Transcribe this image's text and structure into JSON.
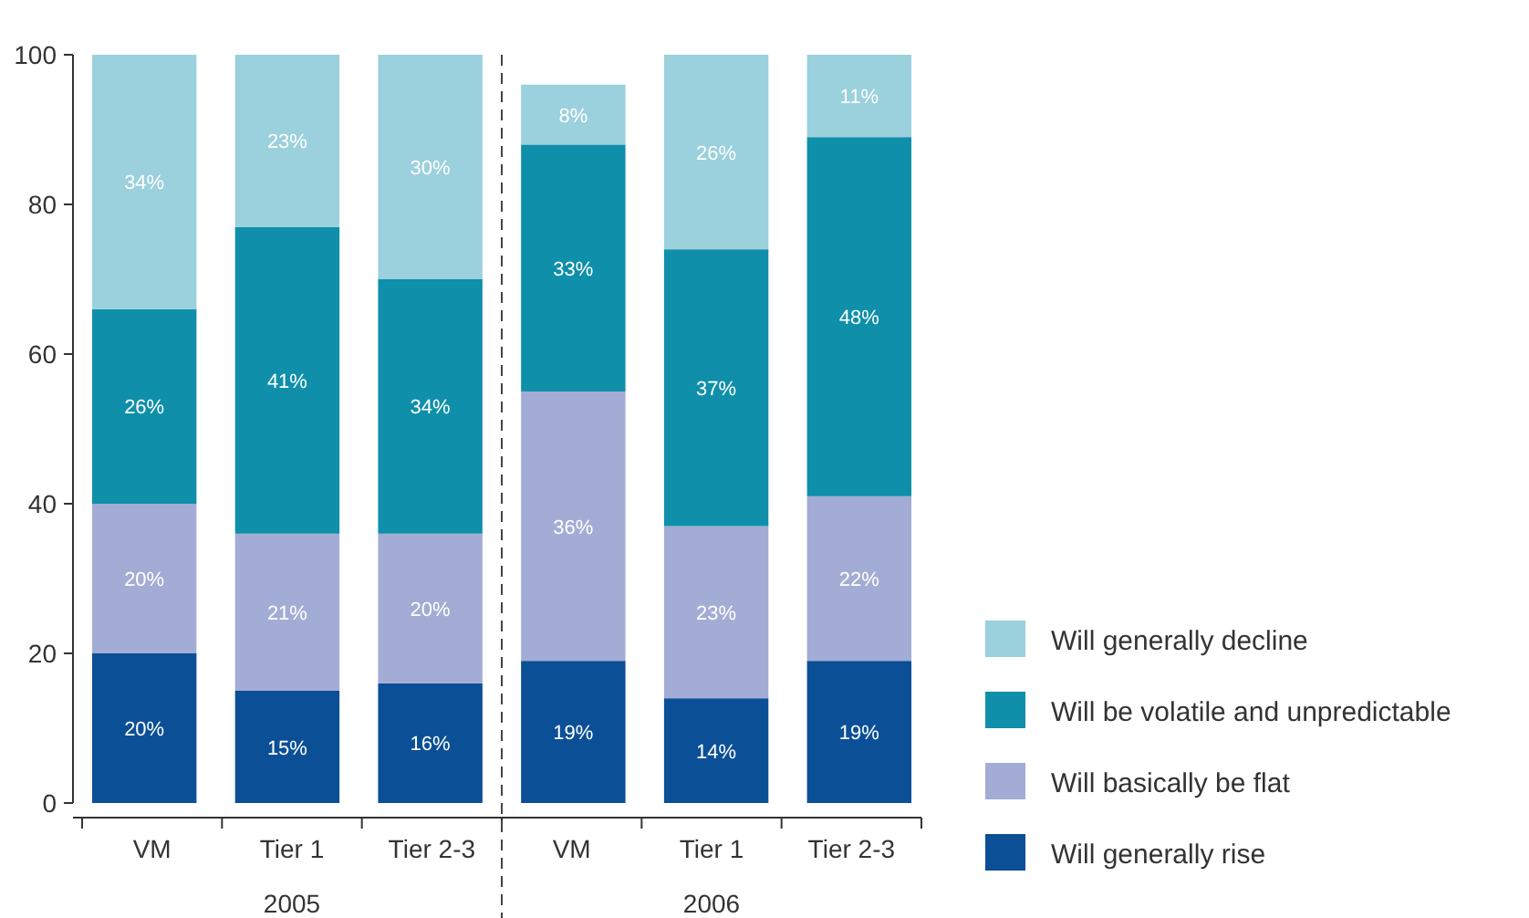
{
  "chart_data": {
    "type": "bar",
    "stacked": true,
    "categories": [
      "VM",
      "Tier 1",
      "Tier 2-3",
      "VM",
      "Tier 1",
      "Tier 2-3"
    ],
    "series": [
      {
        "name": "Will generally rise",
        "color": "#0b4f97",
        "values": [
          20,
          15,
          16,
          19,
          14,
          19
        ],
        "value_labels": [
          "20%",
          "15%",
          "16%",
          "19%",
          "14%",
          "19%"
        ]
      },
      {
        "name": "Will basically be flat",
        "color": "#a3acd4",
        "values": [
          20,
          21,
          20,
          36,
          23,
          22
        ],
        "value_labels": [
          "20%",
          "21%",
          "20%",
          "36%",
          "23%",
          "22%"
        ]
      },
      {
        "name": "Will be volatile and unpredictable",
        "color": "#0f8fa9",
        "values": [
          26,
          41,
          34,
          33,
          37,
          48
        ],
        "value_labels": [
          "26%",
          "41%",
          "34%",
          "33%",
          "37%",
          "48%"
        ]
      },
      {
        "name": "Will generally decline",
        "color": "#9bd0dd",
        "values": [
          34,
          23,
          30,
          8,
          26,
          11
        ],
        "value_labels": [
          "34%",
          "23%",
          "30%",
          "8%",
          "26%",
          "11%"
        ]
      }
    ],
    "ylim": [
      0,
      100
    ],
    "yticks": [
      0,
      20,
      40,
      60,
      80,
      100
    ],
    "grid": false,
    "legend": "bottom right",
    "annotations": [
      "2005",
      "2006"
    ]
  }
}
